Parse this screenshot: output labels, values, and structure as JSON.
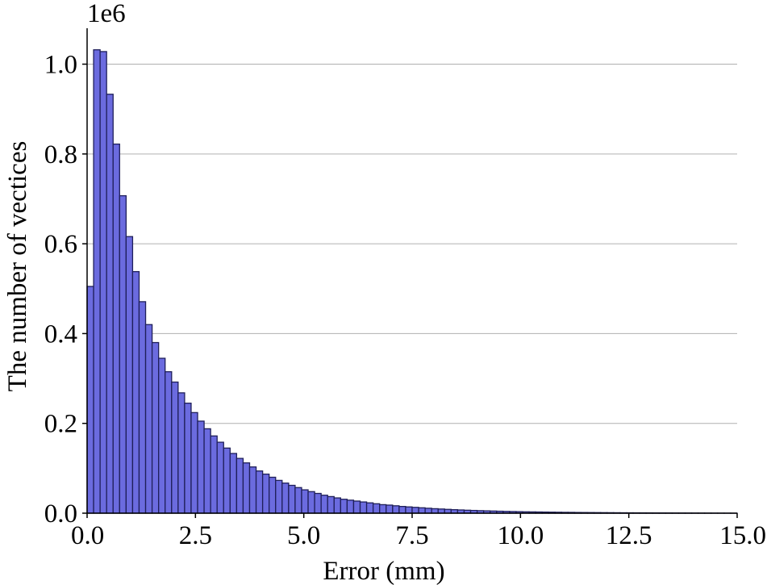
{
  "chart_data": {
    "type": "bar",
    "histogram": true,
    "xlabel": "Error (mm)",
    "ylabel": "The number of vectices",
    "multiplier_label": "1e6",
    "xlim": [
      0,
      15
    ],
    "ylim": [
      0,
      1.08
    ],
    "bin_width": 0.15,
    "bin_start": 0,
    "x_ticks": [
      0.0,
      2.5,
      5.0,
      7.5,
      10.0,
      12.5,
      15.0
    ],
    "x_tick_labels": [
      "0.0",
      "2.5",
      "5.0",
      "7.5",
      "10.0",
      "12.5",
      "15.0"
    ],
    "y_ticks": [
      0.0,
      0.2,
      0.4,
      0.6,
      0.8,
      1.0
    ],
    "y_tick_labels": [
      "0.0",
      "0.2",
      "0.4",
      "0.6",
      "0.8",
      "1.0"
    ],
    "grid": "horizontal",
    "bar_color": "#6b6bdf",
    "bar_edge_color": "#1f1f5a",
    "values": [
      0.505,
      1.032,
      1.028,
      0.933,
      0.822,
      0.707,
      0.616,
      0.538,
      0.471,
      0.42,
      0.38,
      0.345,
      0.315,
      0.292,
      0.268,
      0.245,
      0.224,
      0.205,
      0.188,
      0.172,
      0.158,
      0.145,
      0.133,
      0.122,
      0.112,
      0.103,
      0.094,
      0.087,
      0.08,
      0.073,
      0.067,
      0.062,
      0.057,
      0.052,
      0.048,
      0.044,
      0.04,
      0.037,
      0.034,
      0.031,
      0.029,
      0.027,
      0.025,
      0.023,
      0.021,
      0.019,
      0.018,
      0.0165,
      0.015,
      0.014,
      0.013,
      0.012,
      0.011,
      0.01,
      0.0093,
      0.0085,
      0.0078,
      0.0072,
      0.0066,
      0.0061,
      0.0056,
      0.0052,
      0.0048,
      0.0044,
      0.004,
      0.0037,
      0.0034,
      0.0031,
      0.0029,
      0.0027,
      0.0025,
      0.0023,
      0.0021,
      0.0019,
      0.0018,
      0.0016,
      0.0015,
      0.0014,
      0.0013,
      0.0012,
      0.0011,
      0.001,
      0.0009,
      0.00085,
      0.0008,
      0.00075,
      0.0007,
      0.00065,
      0.0006,
      0.00055,
      0.0005,
      0.00045,
      0.0004,
      0.00035,
      0.0003,
      0.00025,
      0.0002,
      0.00015,
      0.0001,
      5e-05
    ]
  }
}
